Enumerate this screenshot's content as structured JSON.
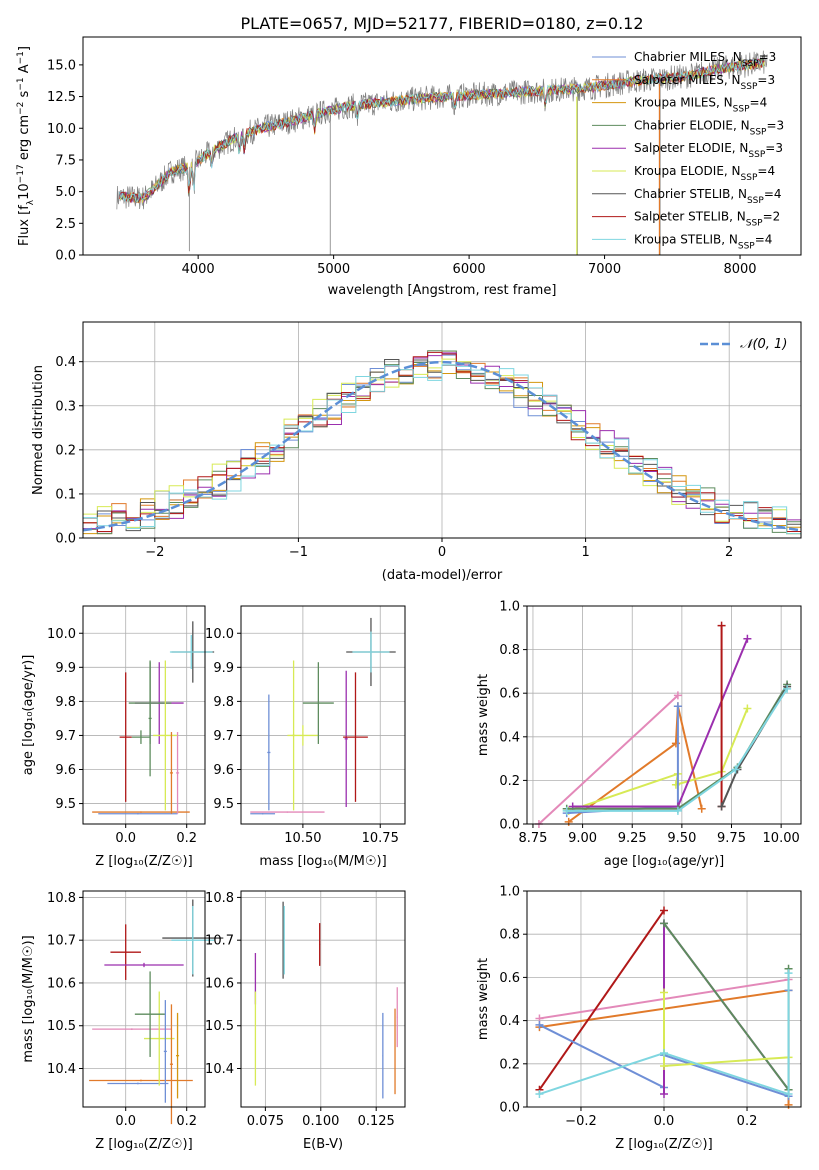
{
  "figure": {
    "title": "PLATE=0657, MJD=52177, FIBERID=0180, z=0.12"
  },
  "colors": {
    "Chabrier MILES": "#6f8fd6",
    "Salpeter MILES": "#e17a2a",
    "Kroupa MILES": "#d4960f",
    "Chabrier ELODIE": "#5e8c5e",
    "Salpeter ELODIE": "#9b2fae",
    "Kroupa ELODIE": "#d7ea55",
    "Chabrier STELIB": "#555555",
    "Salpeter STELIB": "#b01818",
    "Kroupa STELIB": "#7fd6e0",
    "pink": "#e389b9",
    "normal": "#5b8fd6"
  },
  "chart_data": [
    {
      "type": "line",
      "xlabel": "wavelength [Angstrom, rest frame]",
      "ylabel": "Flux [f_λ 10^-17 erg cm^-2 s^-1 A^-1]",
      "xlim": [
        3150,
        8450
      ],
      "ylim": [
        0,
        17.2
      ],
      "xticks": [
        4000,
        5000,
        6000,
        7000,
        8000
      ],
      "yticks": [
        0.0,
        2.5,
        5.0,
        7.5,
        10.0,
        12.5,
        15.0
      ],
      "ytick_labels": [
        "0.0",
        "2.5",
        "5.0",
        "7.5",
        "10.0",
        "12.5",
        "15.0"
      ],
      "legend": [
        {
          "name": "Chabrier MILES, N_SSP=3",
          "color": "#6f8fd6"
        },
        {
          "name": "Salpeter MILES, N_SSP=3",
          "color": "#e17a2a"
        },
        {
          "name": "Kroupa MILES, N_SSP=4",
          "color": "#d4960f"
        },
        {
          "name": "Chabrier ELODIE, N_SSP=3",
          "color": "#5e8c5e"
        },
        {
          "name": "Salpeter ELODIE, N_SSP=3",
          "color": "#9b2fae"
        },
        {
          "name": "Kroupa ELODIE, N_SSP=4",
          "color": "#d7ea55"
        },
        {
          "name": "Chabrier STELIB, N_SSP=4",
          "color": "#555555"
        },
        {
          "name": "Salpeter STELIB, N_SSP=2",
          "color": "#b01818"
        },
        {
          "name": "Kroupa STELIB, N_SSP=4",
          "color": "#7fd6e0"
        }
      ],
      "continuum": [
        [
          3400,
          4.6
        ],
        [
          3600,
          4.5
        ],
        [
          3700,
          5.5
        ],
        [
          3800,
          6.6
        ],
        [
          3950,
          7.0
        ],
        [
          4100,
          8.2
        ],
        [
          4300,
          9.4
        ],
        [
          4500,
          10.1
        ],
        [
          4700,
          10.6
        ],
        [
          4900,
          11.2
        ],
        [
          5100,
          11.7
        ],
        [
          5400,
          12.1
        ],
        [
          5700,
          12.4
        ],
        [
          6000,
          12.6
        ],
        [
          6300,
          12.8
        ],
        [
          6600,
          13.0
        ],
        [
          6900,
          13.2
        ],
        [
          7200,
          13.7
        ],
        [
          7600,
          14.1
        ],
        [
          7900,
          14.8
        ],
        [
          8200,
          15.2
        ]
      ]
    },
    {
      "type": "histogram",
      "xlabel": "(data-model)/error",
      "ylabel": "Normed distribution",
      "xlim": [
        -2.5,
        2.5
      ],
      "ylim": [
        0,
        0.49
      ],
      "xticks": [
        -2,
        -1,
        0,
        1,
        2
      ],
      "xtick_labels": [
        "−2",
        "−1",
        "0",
        "1",
        "2"
      ],
      "yticks": [
        0.0,
        0.1,
        0.2,
        0.3,
        0.4
      ],
      "ytick_labels": [
        "0.0",
        "0.1",
        "0.2",
        "0.3",
        "0.4"
      ],
      "legend": [
        {
          "name": "𝒩(0, 1)",
          "color": "#5b8fd6"
        }
      ],
      "bin_width": 0.1
    },
    {
      "type": "errorbar",
      "xlabel": "Z [log₁₀(Z/Z☉)]",
      "ylabel": "age  [log₁₀(age/yr)]",
      "xlim": [
        -0.14,
        0.26
      ],
      "ylim": [
        9.44,
        10.08
      ],
      "xticks": [
        0.0,
        0.2
      ],
      "xtick_labels": [
        "0.0",
        "0.2"
      ],
      "yticks": [
        9.5,
        9.6,
        9.7,
        9.8,
        9.9,
        10.0
      ],
      "ytick_labels": [
        "9.5",
        "9.6",
        "9.7",
        "9.8",
        "9.9",
        "10.0"
      ],
      "points": [
        {
          "x": 0.05,
          "y": 9.475,
          "xerr": 0.16,
          "yerr": 0.002,
          "color": "#e17a2a"
        },
        {
          "x": 0.04,
          "y": 9.47,
          "xerr": 0.13,
          "yerr": 0.002,
          "color": "#6f8fd6"
        },
        {
          "x": 0.11,
          "y": 9.795,
          "xerr": 0.08,
          "yerr": 0.12,
          "color": "#9b2fae"
        },
        {
          "x": 0.08,
          "y": 9.795,
          "xerr": 0.07,
          "yerr": 0.12,
          "color": "#5e8c5e"
        },
        {
          "x": 0.0,
          "y": 9.695,
          "xerr": 0.02,
          "yerr": 0.19,
          "color": "#b01818"
        },
        {
          "x": 0.05,
          "y": 9.695,
          "xerr": 0.03,
          "yerr": 0.02,
          "color": "#5e8c5e"
        },
        {
          "x": 0.13,
          "y": 9.7,
          "xerr": 0.04,
          "yerr": 0.22,
          "color": "#d7ea55"
        },
        {
          "x": 0.15,
          "y": 9.59,
          "xerr": 0.005,
          "yerr": 0.12,
          "color": "#e17a2a"
        },
        {
          "x": 0.17,
          "y": 9.59,
          "xerr": 0.005,
          "yerr": 0.12,
          "color": "#e389b9"
        },
        {
          "x": 0.08,
          "y": 9.75,
          "xerr": 0.005,
          "yerr": 0.17,
          "color": "#5e8c5e"
        },
        {
          "x": 0.22,
          "y": 9.945,
          "xerr": 0.07,
          "yerr": 0.09,
          "color": "#555555"
        },
        {
          "x": 0.215,
          "y": 9.945,
          "xerr": 0.07,
          "yerr": 0.05,
          "color": "#7fd6e0"
        }
      ]
    },
    {
      "type": "errorbar",
      "xlabel": "mass [log₁₀(M/M☉)]",
      "xlim": [
        10.3,
        10.83
      ],
      "ylim": [
        9.44,
        10.08
      ],
      "xticks": [
        10.5,
        10.75
      ],
      "xtick_labels": [
        "10.50",
        "10.75"
      ],
      "yticks": [
        9.5,
        9.6,
        9.7,
        9.8,
        9.9,
        10.0
      ],
      "ytick_labels": [
        "9.5",
        "9.6",
        "9.7",
        "9.8",
        "9.9",
        "10.0"
      ],
      "points": [
        {
          "x": 10.39,
          "y": 9.65,
          "xerr": 0.005,
          "yerr": 0.17,
          "color": "#6f8fd6"
        },
        {
          "x": 10.45,
          "y": 9.475,
          "xerr": 0.12,
          "yerr": 0.002,
          "color": "#e389b9"
        },
        {
          "x": 10.37,
          "y": 9.47,
          "xerr": 0.04,
          "yerr": 0.002,
          "color": "#6f8fd6"
        },
        {
          "x": 10.47,
          "y": 9.7,
          "xerr": 0.005,
          "yerr": 0.22,
          "color": "#d7ea55"
        },
        {
          "x": 10.5,
          "y": 9.7,
          "xerr": 0.05,
          "yerr": 0.03,
          "color": "#d7ea55"
        },
        {
          "x": 10.55,
          "y": 9.795,
          "xerr": 0.05,
          "yerr": 0.12,
          "color": "#5e8c5e"
        },
        {
          "x": 10.64,
          "y": 9.69,
          "xerr": 0.005,
          "yerr": 0.2,
          "color": "#9b2fae"
        },
        {
          "x": 10.67,
          "y": 9.695,
          "xerr": 0.04,
          "yerr": 0.19,
          "color": "#b01818"
        },
        {
          "x": 10.72,
          "y": 9.945,
          "xerr": 0.08,
          "yerr": 0.1,
          "color": "#555555"
        },
        {
          "x": 10.72,
          "y": 9.945,
          "xerr": 0.06,
          "yerr": 0.06,
          "color": "#7fd6e0"
        }
      ]
    },
    {
      "type": "line",
      "xlabel": "age  [log₁₀(age/yr)]",
      "ylabel": "mass weight",
      "xlim": [
        8.72,
        10.1
      ],
      "ylim": [
        0,
        1
      ],
      "xticks": [
        8.75,
        9.0,
        9.25,
        9.5,
        9.75,
        10.0
      ],
      "xtick_labels": [
        "8.75",
        "9.00",
        "9.25",
        "9.50",
        "9.75",
        "10.00"
      ],
      "yticks": [
        0.0,
        0.2,
        0.4,
        0.6,
        0.8,
        1.0
      ],
      "ytick_labels": [
        "0.0",
        "0.2",
        "0.4",
        "0.6",
        "0.8",
        "1.0"
      ],
      "series": [
        {
          "color": "#e389b9",
          "x": [
            8.78,
            9.48
          ],
          "y": [
            0.0,
            0.59
          ]
        },
        {
          "color": "#e17a2a",
          "x": [
            8.93,
            9.47,
            9.48,
            9.6
          ],
          "y": [
            0.01,
            0.37,
            0.54,
            0.07
          ]
        },
        {
          "color": "#d7ea55",
          "x": [
            8.93,
            9.48,
            9.47,
            9.7,
            9.83
          ],
          "y": [
            0.06,
            0.23,
            0.18,
            0.24,
            0.53
          ]
        },
        {
          "color": "#6f8fd6",
          "x": [
            8.92,
            9.48,
            9.48
          ],
          "y": [
            0.05,
            0.08,
            0.54
          ]
        },
        {
          "color": "#9b2fae",
          "x": [
            8.95,
            9.48,
            9.83
          ],
          "y": [
            0.08,
            0.08,
            0.85
          ]
        },
        {
          "color": "#b01818",
          "x": [
            9.7,
            9.7
          ],
          "y": [
            0.08,
            0.91
          ]
        },
        {
          "color": "#5e8c5e",
          "x": [
            8.92,
            9.48,
            9.78,
            10.03
          ],
          "y": [
            0.07,
            0.07,
            0.26,
            0.64
          ]
        },
        {
          "color": "#555555",
          "x": [
            9.7,
            9.78,
            10.03
          ],
          "y": [
            0.08,
            0.25,
            0.63
          ]
        },
        {
          "color": "#7fd6e0",
          "x": [
            8.92,
            9.48,
            9.77,
            10.03
          ],
          "y": [
            0.06,
            0.06,
            0.25,
            0.62
          ]
        }
      ]
    },
    {
      "type": "errorbar",
      "xlabel": "Z [log₁₀(Z/Z☉)]",
      "ylabel": "mass [log₁₀(M/M☉)]",
      "xlim": [
        -0.14,
        0.26
      ],
      "ylim": [
        10.31,
        10.815
      ],
      "xticks": [
        0.0,
        0.2
      ],
      "xtick_labels": [
        "0.0",
        "0.2"
      ],
      "yticks": [
        10.4,
        10.5,
        10.6,
        10.7,
        10.8
      ],
      "ytick_labels": [
        "10.4",
        "10.5",
        "10.6",
        "10.7",
        "10.8"
      ],
      "points": [
        {
          "x": 0.05,
          "y": 10.372,
          "xerr": 0.17,
          "yerr": 0.002,
          "color": "#e17a2a"
        },
        {
          "x": 0.04,
          "y": 10.365,
          "xerr": 0.1,
          "yerr": 0.002,
          "color": "#6f8fd6"
        },
        {
          "x": 0.02,
          "y": 10.492,
          "xerr": 0.13,
          "yerr": 0.002,
          "color": "#e389b9"
        },
        {
          "x": 0.11,
          "y": 10.47,
          "xerr": 0.05,
          "yerr": 0.11,
          "color": "#d7ea55"
        },
        {
          "x": 0.08,
          "y": 10.527,
          "xerr": 0.05,
          "yerr": 0.1,
          "color": "#5e8c5e"
        },
        {
          "x": 0.0,
          "y": 10.672,
          "xerr": 0.05,
          "yerr": 0.065,
          "color": "#b01818"
        },
        {
          "x": 0.06,
          "y": 10.642,
          "xerr": 0.13,
          "yerr": 0.005,
          "color": "#9b2fae"
        },
        {
          "x": 0.15,
          "y": 10.41,
          "xerr": 0.005,
          "yerr": 0.14,
          "color": "#e17a2a"
        },
        {
          "x": 0.13,
          "y": 10.44,
          "xerr": 0.005,
          "yerr": 0.12,
          "color": "#6f8fd6"
        },
        {
          "x": 0.17,
          "y": 10.43,
          "xerr": 0.005,
          "yerr": 0.1,
          "color": "#d4960f"
        },
        {
          "x": 0.22,
          "y": 10.705,
          "xerr": 0.1,
          "yerr": 0.09,
          "color": "#555555"
        },
        {
          "x": 0.22,
          "y": 10.7,
          "xerr": 0.07,
          "yerr": 0.08,
          "color": "#7fd6e0"
        }
      ]
    },
    {
      "type": "errorbar",
      "xlabel": "E(B-V)",
      "xlim": [
        0.064,
        0.138
      ],
      "ylim": [
        10.31,
        10.815
      ],
      "xticks": [
        0.075,
        0.1,
        0.125
      ],
      "xtick_labels": [
        "0.075",
        "0.100",
        "0.125"
      ],
      "yticks": [
        10.4,
        10.5,
        10.6,
        10.7,
        10.8
      ],
      "ytick_labels": [
        "10.4",
        "10.5",
        "10.6",
        "10.7",
        "10.8"
      ],
      "points": [
        {
          "x": 0.0705,
          "y": 10.61,
          "xerr": 0.0002,
          "yerr": 0.06,
          "color": "#9b2fae"
        },
        {
          "x": 0.0705,
          "y": 10.47,
          "xerr": 0.0002,
          "yerr": 0.11,
          "color": "#d7ea55"
        },
        {
          "x": 0.083,
          "y": 10.7,
          "xerr": 0.0002,
          "yerr": 0.09,
          "color": "#555555"
        },
        {
          "x": 0.0835,
          "y": 10.7,
          "xerr": 0.0002,
          "yerr": 0.08,
          "color": "#7fd6e0"
        },
        {
          "x": 0.0995,
          "y": 10.69,
          "xerr": 0.0002,
          "yerr": 0.05,
          "color": "#b01818"
        },
        {
          "x": 0.128,
          "y": 10.43,
          "xerr": 0.0002,
          "yerr": 0.1,
          "color": "#6f8fd6"
        },
        {
          "x": 0.1335,
          "y": 10.44,
          "xerr": 0.0002,
          "yerr": 0.1,
          "color": "#e17a2a"
        },
        {
          "x": 0.1345,
          "y": 10.52,
          "xerr": 0.0002,
          "yerr": 0.07,
          "color": "#e389b9"
        }
      ]
    },
    {
      "type": "line",
      "xlabel": "Z [log₁₀(Z/Z☉)]",
      "ylabel": "mass weight",
      "xlim": [
        -0.33,
        0.33
      ],
      "ylim": [
        0,
        1
      ],
      "xticks": [
        -0.2,
        0.0,
        0.2
      ],
      "xtick_labels": [
        "−0.2",
        "0.0",
        "0.2"
      ],
      "yticks": [
        0.0,
        0.2,
        0.4,
        0.6,
        0.8,
        1.0
      ],
      "ytick_labels": [
        "0.0",
        "0.2",
        "0.4",
        "0.6",
        "0.8",
        "1.0"
      ],
      "series": [
        {
          "color": "#e389b9",
          "x": [
            -0.3,
            0.3
          ],
          "y": [
            0.41,
            0.59
          ]
        },
        {
          "color": "#e17a2a",
          "x": [
            -0.3,
            0.3,
            0.3
          ],
          "y": [
            0.37,
            0.54,
            0.01
          ]
        },
        {
          "color": "#b01818",
          "x": [
            -0.3,
            0.0
          ],
          "y": [
            0.08,
            0.91
          ]
        },
        {
          "color": "#6f8fd6",
          "x": [
            -0.3,
            0.0,
            0.0,
            0.3,
            0.3
          ],
          "y": [
            0.38,
            0.09,
            0.24,
            0.05,
            0.54
          ]
        },
        {
          "color": "#9b2fae",
          "x": [
            0.0,
            0.0,
            0.3
          ],
          "y": [
            0.06,
            0.85,
            0.08
          ]
        },
        {
          "color": "#5e8c5e",
          "x": [
            0.0,
            0.3,
            0.3
          ],
          "y": [
            0.85,
            0.08,
            0.64
          ]
        },
        {
          "color": "#d7ea55",
          "x": [
            0.0,
            0.0,
            0.3
          ],
          "y": [
            0.53,
            0.19,
            0.23
          ]
        },
        {
          "color": "#7fd6e0",
          "x": [
            -0.3,
            0.0,
            0.3,
            0.3
          ],
          "y": [
            0.06,
            0.25,
            0.06,
            0.62
          ]
        }
      ]
    }
  ]
}
